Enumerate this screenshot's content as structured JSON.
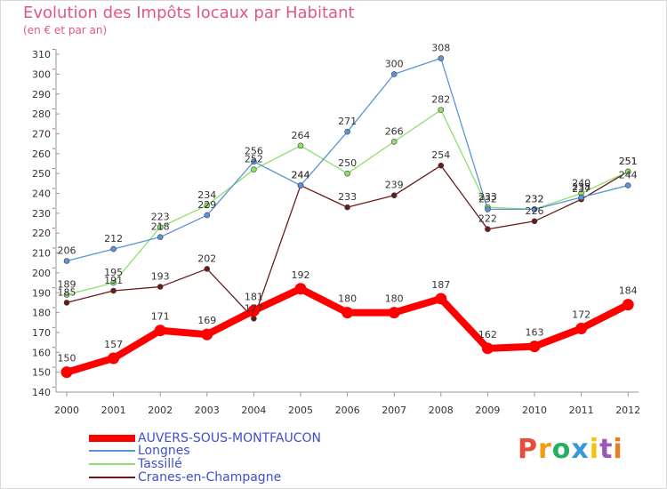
{
  "header": {
    "title": "Evolution des Impôts locaux par Habitant",
    "subtitle": "(en € et par an)"
  },
  "chart_data": {
    "type": "line",
    "title": "Evolution des Impôts locaux par Habitant",
    "subtitle": "(en € et par an)",
    "xlabel": "",
    "ylabel": "",
    "ylim": [
      140,
      310
    ],
    "y_ticks": [
      140,
      150,
      160,
      170,
      180,
      190,
      200,
      210,
      220,
      230,
      240,
      250,
      260,
      270,
      280,
      290,
      300,
      310
    ],
    "grid": false,
    "legend_position": "bottom-left",
    "x": [
      "2000",
      "2001",
      "2002",
      "2003",
      "2004",
      "2005",
      "2006",
      "2007",
      "2008",
      "2009",
      "2010",
      "2011",
      "2012"
    ],
    "series": [
      {
        "name": "Cranes-en-Champagne",
        "color": "#6b1a1a",
        "values": [
          185,
          191,
          193,
          202,
          177,
          244,
          233,
          239,
          254,
          222,
          226,
          237,
          251
        ]
      },
      {
        "name": "Tassillé",
        "color": "#8ee06a",
        "values": [
          189,
          195,
          223,
          234,
          252,
          264,
          250,
          266,
          282,
          233,
          232,
          240,
          251
        ]
      },
      {
        "name": "Longnes",
        "color": "#5b94d6",
        "values": [
          206,
          212,
          218,
          229,
          256,
          244,
          271,
          300,
          308,
          232,
          232,
          238,
          244
        ]
      },
      {
        "name": "AUVERS-SOUS-MONTFAUCON",
        "color": "#ff0000",
        "values": [
          150,
          157,
          171,
          169,
          181,
          192,
          180,
          180,
          187,
          162,
          163,
          172,
          184
        ]
      }
    ]
  },
  "legend": {
    "items": [
      {
        "label": "AUVERS-SOUS-MONTFAUCON",
        "color": "#ff0000"
      },
      {
        "label": "Longnes",
        "color": "#5b94d6"
      },
      {
        "label": "Tassillé",
        "color": "#8ee06a"
      },
      {
        "label": "Cranes-en-Champagne",
        "color": "#6b1a1a"
      }
    ]
  },
  "logo": {
    "text": "Proxiti",
    "colors": [
      "#e84c3d",
      "#f39c12",
      "#27ae60",
      "#3498db",
      "#f1c40f",
      "#9b59b6",
      "#e67e22"
    ]
  }
}
